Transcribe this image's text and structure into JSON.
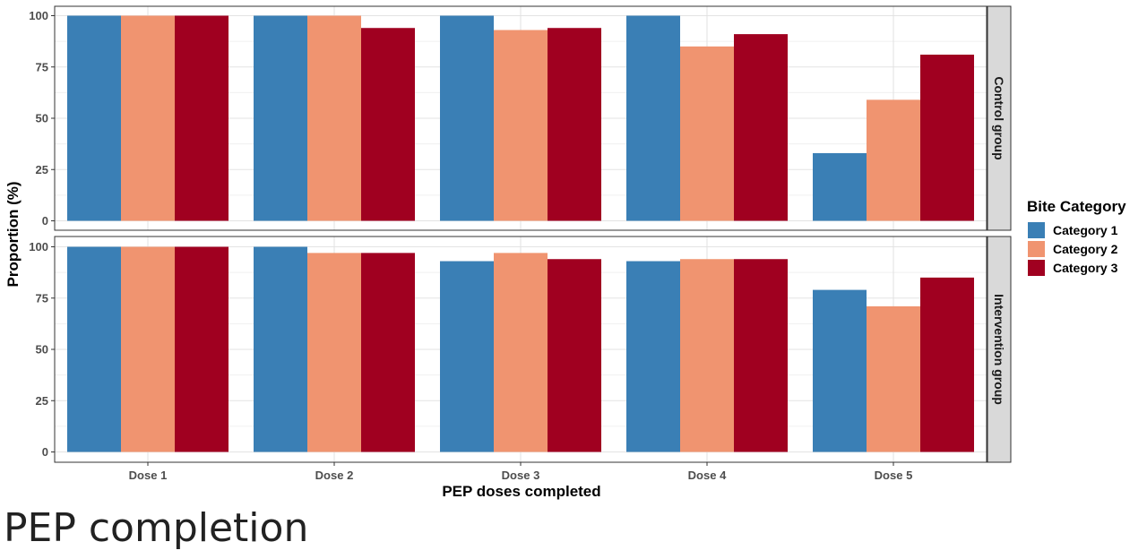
{
  "caption": "PEP completion",
  "chart_data": {
    "type": "bar",
    "xlabel": "PEP doses completed",
    "ylabel": "Proportion (%)",
    "ylim": [
      0,
      100
    ],
    "yticks": [
      0,
      25,
      50,
      75,
      100
    ],
    "categories": [
      "Dose 1",
      "Dose 2",
      "Dose 3",
      "Dose 4",
      "Dose 5"
    ],
    "legend": {
      "title": "Bite Category",
      "placement": "right"
    },
    "grid": true,
    "colors": {
      "Category 1": "#3a7fb5",
      "Category 2": "#f09470",
      "Category 3": "#a00020"
    },
    "panels": [
      {
        "label": "Control group",
        "series": [
          {
            "name": "Category 1",
            "values": [
              100,
              100,
              100,
              100,
              33
            ]
          },
          {
            "name": "Category 2",
            "values": [
              100,
              100,
              93,
              85,
              59
            ]
          },
          {
            "name": "Category 3",
            "values": [
              100,
              94,
              94,
              91,
              81
            ]
          }
        ]
      },
      {
        "label": "Intervention group",
        "series": [
          {
            "name": "Category 1",
            "values": [
              100,
              100,
              93,
              93,
              79
            ]
          },
          {
            "name": "Category 2",
            "values": [
              100,
              97,
              97,
              94,
              71
            ]
          },
          {
            "name": "Category 3",
            "values": [
              100,
              97,
              94,
              94,
              85
            ]
          }
        ]
      }
    ]
  }
}
